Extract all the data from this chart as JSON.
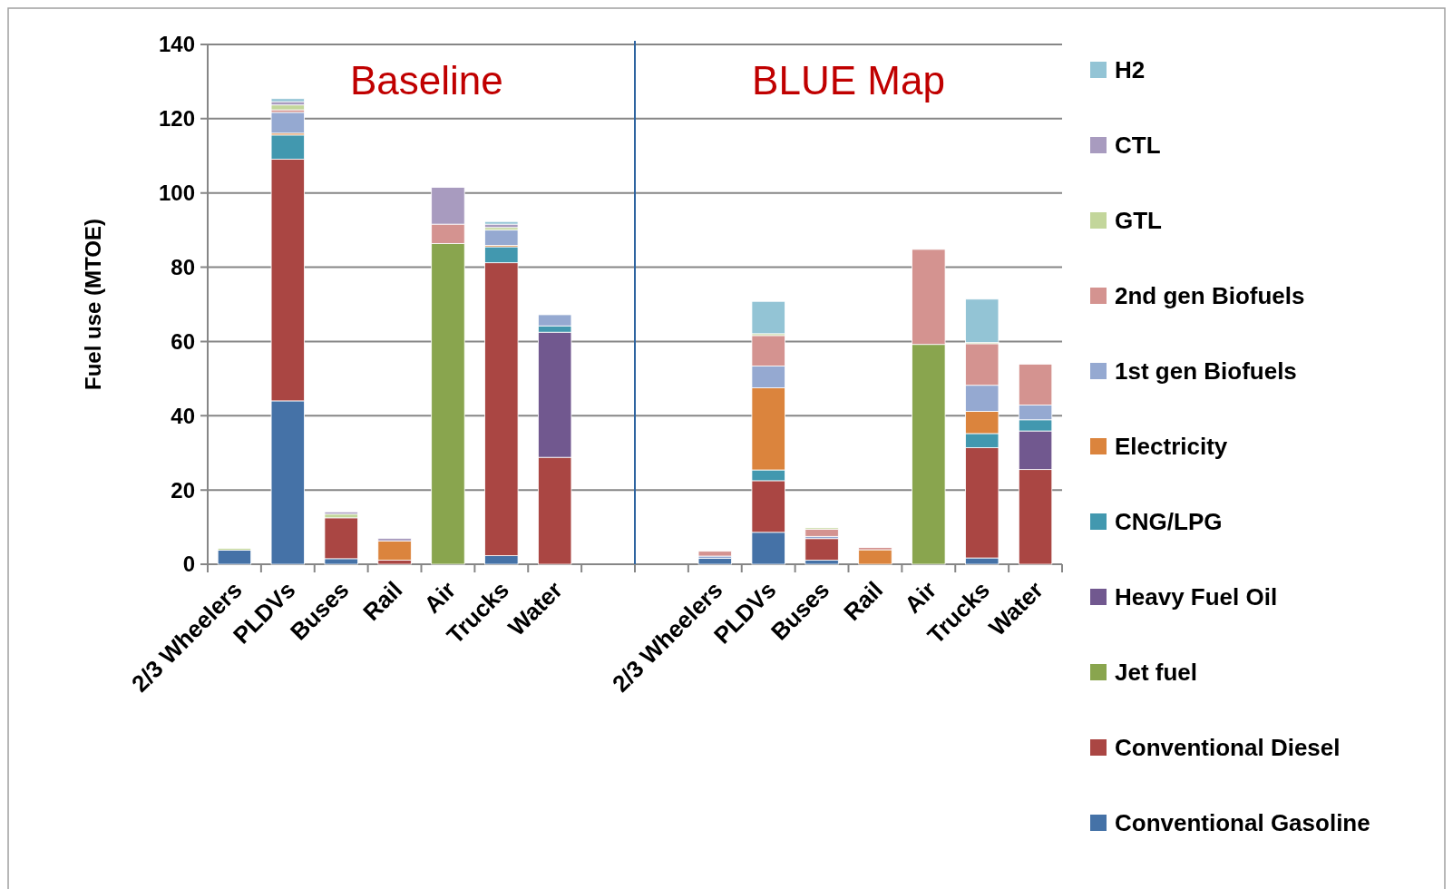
{
  "chart_data": [
    {
      "type": "bar",
      "stacked": true,
      "ylabel": "Fuel use (MTOE)",
      "categories": [
        "2/3 Wheelers",
        "PLDVs",
        "Buses",
        "Rail",
        "Air",
        "Trucks",
        "Water",
        null
      ],
      "series": [
        {
          "name": "Conventional Gasoline",
          "color": "#4572a7",
          "values": [
            3.8,
            44.0,
            1.5,
            0,
            0,
            2.3,
            0,
            null
          ]
        },
        {
          "name": "Conventional Diesel",
          "color": "#aa4643",
          "values": [
            0,
            65.1,
            11.0,
            1.1,
            0,
            78.9,
            28.8,
            null
          ]
        },
        {
          "name": "Jet fuel",
          "color": "#89a54e",
          "values": [
            0,
            0,
            0,
            0,
            86.4,
            0,
            0,
            null
          ]
        },
        {
          "name": "Heavy Fuel Oil",
          "color": "#71588f",
          "values": [
            0,
            0,
            0,
            0,
            0,
            0,
            33.7,
            null
          ]
        },
        {
          "name": "CNG/LPG",
          "color": "#4298af",
          "values": [
            0,
            6.5,
            0,
            0,
            0,
            4.3,
            1.7,
            null
          ]
        },
        {
          "name": "Electricity",
          "color": "#db843d",
          "values": [
            0,
            0.5,
            0,
            5.2,
            0,
            0.4,
            0,
            null
          ]
        },
        {
          "name": "1st gen Biofuels",
          "color": "#95a9d1",
          "values": [
            0,
            5.6,
            0,
            0,
            0,
            4.1,
            3.0,
            null
          ]
        },
        {
          "name": "2nd gen Biofuels",
          "color": "#d49390",
          "values": [
            0,
            0.7,
            0,
            0,
            5.2,
            0,
            0,
            null
          ]
        },
        {
          "name": "GTL",
          "color": "#c3d69b",
          "values": [
            0.5,
            1.3,
            1.0,
            0,
            0,
            0.7,
            0,
            null
          ]
        },
        {
          "name": "CTL",
          "color": "#a89bbf",
          "values": [
            0,
            0.9,
            0.6,
            0.7,
            9.9,
            0.9,
            0,
            null
          ]
        },
        {
          "name": "H2",
          "color": "#93c4d5",
          "values": [
            0,
            0.8,
            0,
            0,
            0,
            0.7,
            0,
            null
          ]
        }
      ],
      "ylim": [
        0,
        140
      ],
      "yticks": [
        0,
        20,
        40,
        60,
        80,
        100,
        120,
        140
      ],
      "grid": "y",
      "legend": "right",
      "annotations": [
        "Baseline"
      ]
    },
    {
      "type": "bar",
      "stacked": true,
      "categories": [
        null,
        "2/3 Wheelers",
        "PLDVs",
        "Buses",
        "Rail",
        "Air",
        "Trucks",
        "Water"
      ],
      "series": [
        {
          "color": "#4572a7",
          "values": [
            null,
            1.6,
            8.6,
            1.1,
            0,
            0,
            1.7,
            0
          ]
        },
        {
          "color": "#aa4643",
          "values": [
            null,
            0,
            13.9,
            5.8,
            0,
            0,
            29.7,
            25.5
          ]
        },
        {
          "color": "#89a54e",
          "values": [
            null,
            0,
            0,
            0,
            0,
            59.2,
            0,
            0
          ]
        },
        {
          "color": "#71588f",
          "values": [
            null,
            0,
            0,
            0,
            0,
            0,
            0,
            10.4
          ]
        },
        {
          "color": "#4298af",
          "values": [
            null,
            0,
            2.9,
            0,
            0,
            0,
            3.8,
            3.0
          ]
        },
        {
          "color": "#db843d",
          "values": [
            null,
            0,
            22.1,
            0,
            3.9,
            0,
            6.0,
            0
          ]
        },
        {
          "color": "#95a9d1",
          "values": [
            null,
            0.6,
            5.9,
            0.6,
            0,
            0,
            7.0,
            4.0
          ]
        },
        {
          "color": "#d49390",
          "values": [
            null,
            1.3,
            8.2,
            1.9,
            0.6,
            25.6,
            11.2,
            11.0
          ]
        },
        {
          "color": "#c3d69b",
          "values": [
            null,
            0,
            0.5,
            0.4,
            0,
            0,
            0.3,
            0
          ]
        },
        {
          "color": "#93c4d5",
          "values": [
            null,
            0,
            8.7,
            0,
            0,
            0,
            11.7,
            0
          ]
        }
      ],
      "ylim": [
        0,
        140
      ],
      "yticks": [
        0,
        20,
        40,
        60,
        80,
        100,
        120,
        140
      ],
      "grid": "y",
      "tick_labels": "x",
      "annotations": [
        "BLUE Map"
      ]
    }
  ]
}
